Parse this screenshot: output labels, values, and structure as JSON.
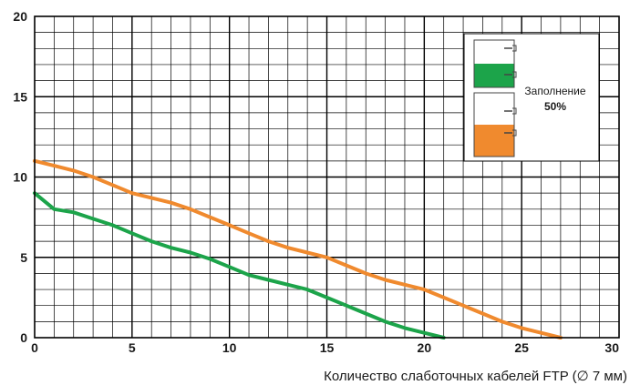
{
  "chart_data": {
    "type": "line",
    "xlabel": "Количество слаботочных кабелей FTP (∅ 7 мм)",
    "ylabel": "",
    "xlim": [
      0,
      30
    ],
    "ylim": [
      0,
      20
    ],
    "x_ticks": [
      "0",
      "5",
      "10",
      "15",
      "20",
      "25",
      "30"
    ],
    "y_ticks": [
      "0",
      "5",
      "10",
      "15",
      "20"
    ],
    "grid": true,
    "legend": {
      "placement": "top-right",
      "text": "Заполнение",
      "value": "50%"
    },
    "series": [
      {
        "color": "#f08a2e",
        "points": [
          [
            0,
            11
          ],
          [
            1,
            10.7
          ],
          [
            2,
            10.4
          ],
          [
            3,
            10
          ],
          [
            4,
            9.5
          ],
          [
            5,
            9
          ],
          [
            6,
            8.7
          ],
          [
            7,
            8.4
          ],
          [
            8,
            8
          ],
          [
            9,
            7.5
          ],
          [
            10,
            7
          ],
          [
            11,
            6.5
          ],
          [
            12,
            6
          ],
          [
            13,
            5.6
          ],
          [
            14,
            5.3
          ],
          [
            15,
            5
          ],
          [
            16,
            4.5
          ],
          [
            17,
            4
          ],
          [
            18,
            3.6
          ],
          [
            19,
            3.3
          ],
          [
            20,
            3
          ],
          [
            21,
            2.5
          ],
          [
            22,
            2
          ],
          [
            23,
            1.5
          ],
          [
            24,
            1
          ],
          [
            25,
            0.6
          ],
          [
            26,
            0.3
          ],
          [
            27,
            0
          ]
        ]
      },
      {
        "color": "#1ca44a",
        "points": [
          [
            0,
            9
          ],
          [
            1,
            8
          ],
          [
            2,
            7.8
          ],
          [
            3,
            7.4
          ],
          [
            4,
            7
          ],
          [
            5,
            6.5
          ],
          [
            6,
            6
          ],
          [
            7,
            5.6
          ],
          [
            8,
            5.3
          ],
          [
            9,
            4.9
          ],
          [
            10,
            4.4
          ],
          [
            11,
            3.9
          ],
          [
            12,
            3.6
          ],
          [
            13,
            3.3
          ],
          [
            14,
            3
          ],
          [
            15,
            2.5
          ],
          [
            16,
            2
          ],
          [
            17,
            1.5
          ],
          [
            18,
            1
          ],
          [
            19,
            0.6
          ],
          [
            20,
            0.3
          ],
          [
            21,
            0
          ]
        ]
      }
    ]
  }
}
